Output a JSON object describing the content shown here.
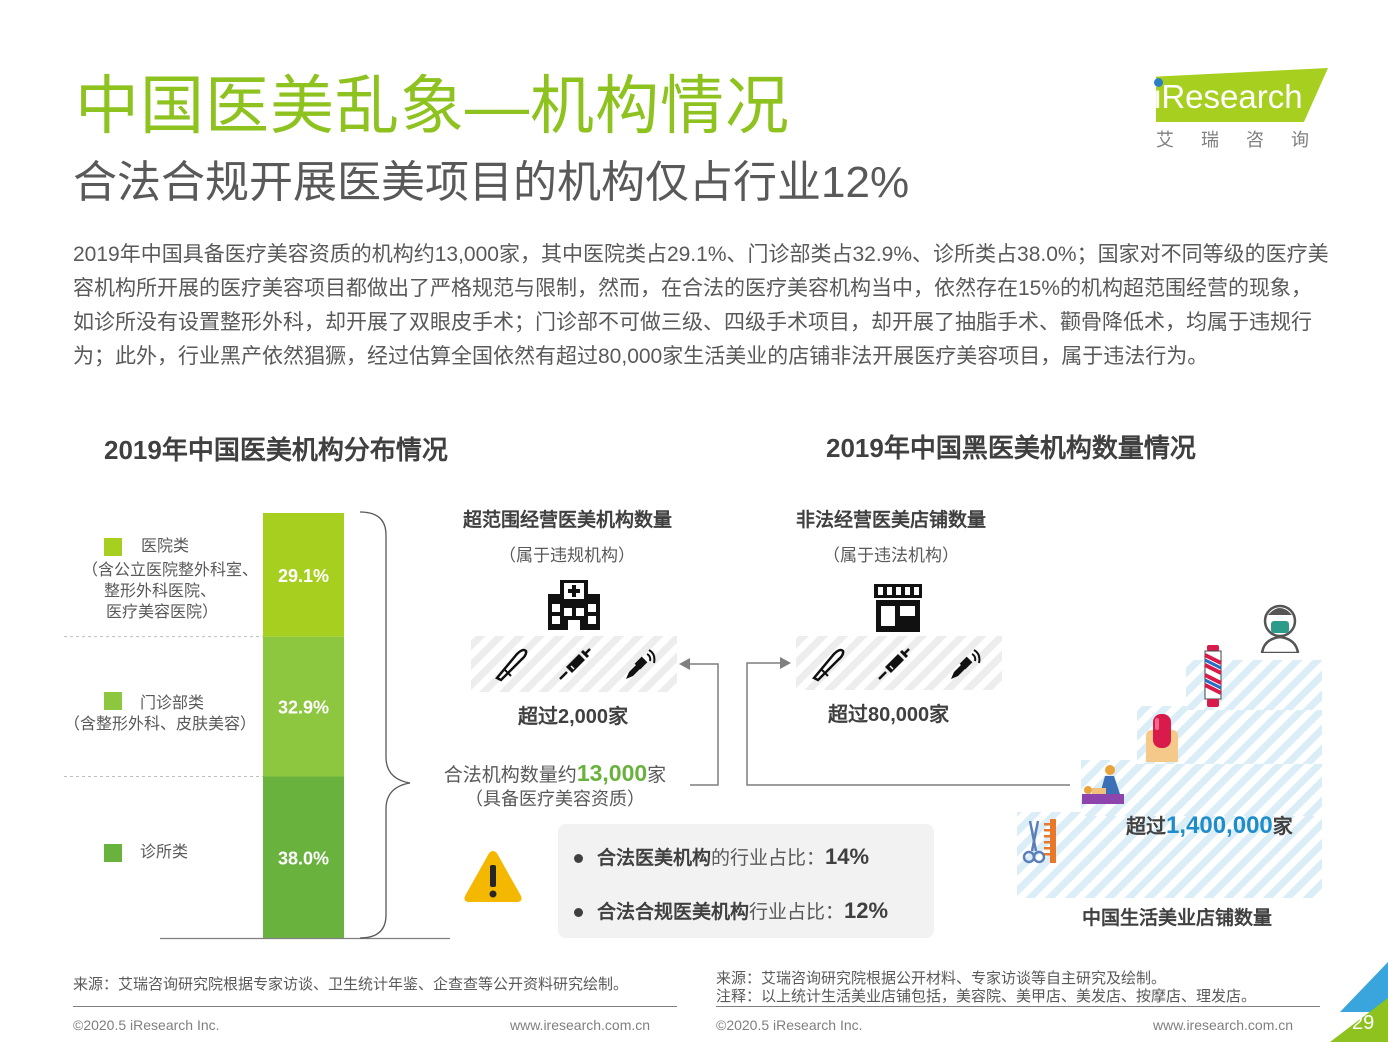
{
  "header": {
    "title": "中国医美乱象—机构情况",
    "subtitle": "合法合规开展医美项目的机构仅占行业12%",
    "logo_text": "iResearch",
    "logo_cn": "艾瑞咨询"
  },
  "intro": "2019年中国具备医疗美容资质的机构约13,000家，其中医院类占29.1%、门诊部类占32.9%、诊所类占38.0%；国家对不同等级的医疗美容机构所开展的医疗美容项目都做出了严格规范与限制，然而，在合法的医疗美容机构当中，依然存在15%的机构超范围经营的现象，如诊所没有设置整形外科，却开展了双眼皮手术；门诊部不可做三级、四级手术项目，却开展了抽脂手术、颧骨降低术，均属于违规行为；此外，行业黑产依然猖獗，经过估算全国依然有超过80,000家生活美业的店铺非法开展医疗美容项目，属于违法行为。",
  "left_section_title": "2019年中国医美机构分布情况",
  "right_section_title": "2019年中国黑医美机构数量情况",
  "chart_data": {
    "type": "bar",
    "stacked": true,
    "title": "2019年中国医美机构分布情况",
    "categories": [
      "2019"
    ],
    "series": [
      {
        "name": "医院类",
        "note": "（含公立医院整外科室、整形外科医院、医疗美容医院）",
        "value": 29.1,
        "label": "29.1%",
        "color": "#a6cf1f"
      },
      {
        "name": "门诊部类",
        "note": "（含整形外科、皮肤美容）",
        "value": 32.9,
        "label": "32.9%",
        "color": "#8dc63f"
      },
      {
        "name": "诊所类",
        "note": "",
        "value": 38.0,
        "label": "38.0%",
        "color": "#6ab23e"
      }
    ],
    "unit": "%",
    "ylim": [
      0,
      100
    ]
  },
  "legend_text": {
    "hospital": [
      "医院类",
      "（含公立医院整外科室、",
      "整形外科医院、",
      "医疗美容医院）"
    ],
    "outpatient": [
      "门诊部类",
      "（含整形外科、皮肤美容）"
    ],
    "clinic": [
      "诊所类"
    ]
  },
  "overscope": {
    "title": "超范围经营医美机构数量",
    "sub": "（属于违规机构）",
    "count_prefix": "超过",
    "count_value": "2,000",
    "count_suffix": "家"
  },
  "illegal": {
    "title": "非法经营医美店铺数量",
    "sub": "（属于违法机构）",
    "count_prefix": "超过",
    "count_value": "80,000",
    "count_suffix": "家"
  },
  "legal": {
    "line1_prefix": "合法机构数量约",
    "line1_value": "13,000",
    "line1_suffix": "家",
    "line2": "（具备医疗美容资质）"
  },
  "notes": [
    {
      "bold": "合法医美机构",
      "text": "的行业占比：",
      "value": "14%"
    },
    {
      "bold": "合法合规医美机构",
      "text": "行业占比：",
      "value": "12%"
    }
  ],
  "lifestyle": {
    "count_prefix": "超过",
    "count_value": "1,400,000",
    "count_suffix": "家",
    "caption": "中国生活美业店铺数量"
  },
  "footer": {
    "source_left": "来源：艾瑞咨询研究院根据专家访谈、卫生统计年鉴、企查查等公开资料研究绘制。",
    "source_right": "来源：艾瑞咨询研究院根据公开材料、专家访谈等自主研究及绘制。",
    "note_right": "注释：以上统计生活美业店铺包括，美容院、美甲店、美发店、按摩店、理发店。",
    "copyright": "©2020.5 iResearch Inc.",
    "url": "www.iresearch.com.cn",
    "page": "29"
  },
  "colors": {
    "title_green": "#8dc21f",
    "accent_blue": "#1f8dcb",
    "warning": "#f5b800"
  }
}
